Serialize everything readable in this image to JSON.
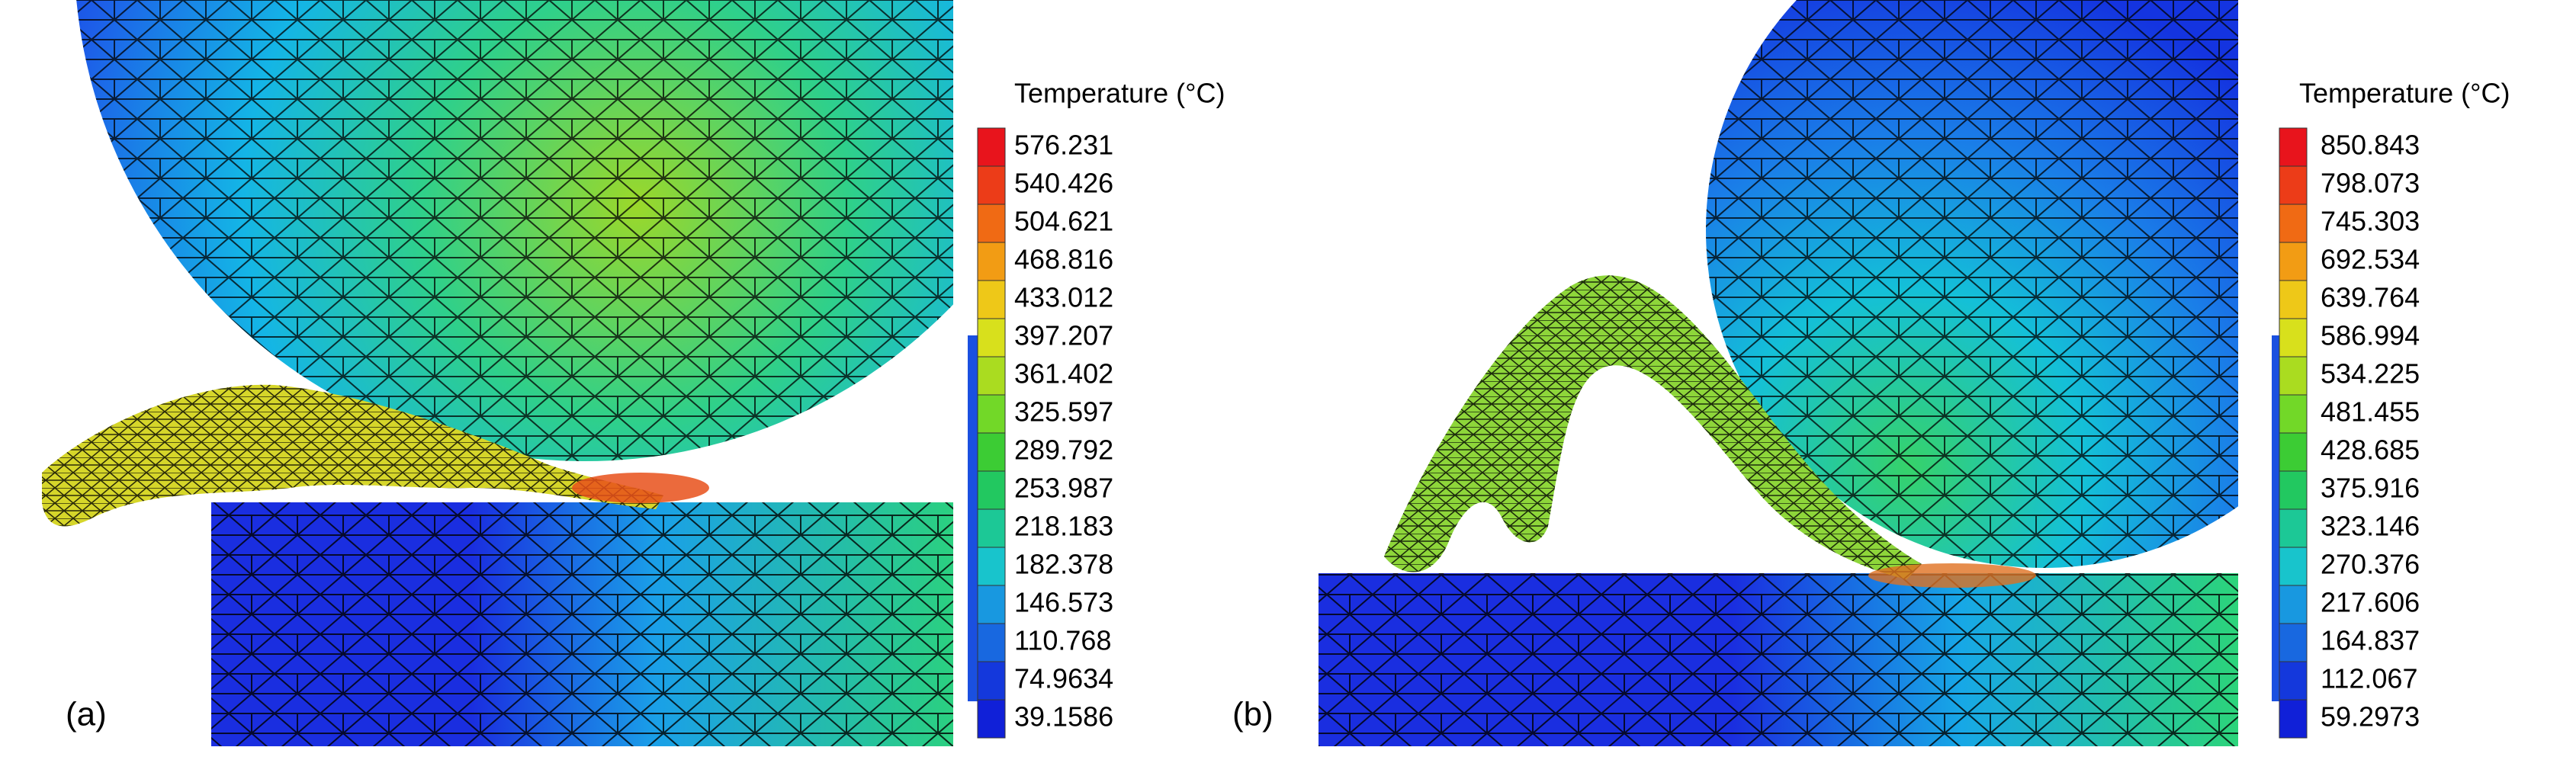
{
  "panels": [
    {
      "label": "(a)",
      "legend": {
        "title": "Temperature (°C)",
        "levels": [
          "576.231",
          "540.426",
          "504.621",
          "468.816",
          "433.012",
          "397.207",
          "361.402",
          "325.597",
          "289.792",
          "253.987",
          "218.183",
          "182.378",
          "146.573",
          "110.768",
          "74.9634",
          "39.1586"
        ]
      }
    },
    {
      "label": "(b)",
      "legend": {
        "title": "Temperature (°C)",
        "levels": [
          "850.843",
          "798.073",
          "745.303",
          "692.534",
          "639.764",
          "586.994",
          "534.225",
          "481.455",
          "428.685",
          "375.916",
          "323.146",
          "270.376",
          "217.606",
          "164.837",
          "112.067",
          "59.2973"
        ]
      }
    }
  ]
}
